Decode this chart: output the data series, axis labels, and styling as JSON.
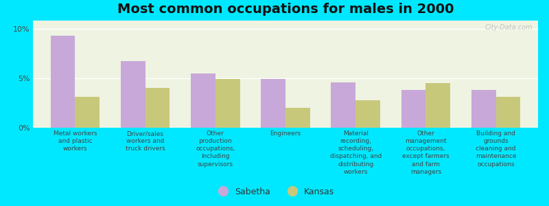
{
  "title": "Most common occupations for males in 2000",
  "categories": [
    "Metal workers\nand plastic\nworkers",
    "Driver/sales\nworkers and\ntruck drivers",
    "Other\nproduction\noccupations,\nincluding\nsupervisors",
    "Engineers",
    "Material\nrecording,\nscheduling,\ndispatching, and\ndistributing\nworkers",
    "Other\nmanagement\noccupations,\nexcept farmers\nand farm\nmanagers",
    "Building and\ngrounds\ncleaning and\nmaintenance\noccupations"
  ],
  "sabetha_values": [
    9.3,
    6.7,
    5.5,
    4.9,
    4.6,
    3.8,
    3.8
  ],
  "kansas_values": [
    3.1,
    4.0,
    4.9,
    2.0,
    2.8,
    4.5,
    3.1
  ],
  "sabetha_color": "#c8a8d8",
  "kansas_color": "#c8c87a",
  "background_color": "#00e8ff",
  "plot_bg_color": "#eef3e2",
  "yticks": [
    0,
    5,
    10
  ],
  "yticklabels": [
    "0%",
    "5%",
    "10%"
  ],
  "ylim": [
    0,
    10.8
  ],
  "bar_width": 0.35,
  "title_fontsize": 14,
  "label_fontsize": 6.5,
  "tick_fontsize": 8,
  "legend_fontsize": 9,
  "watermark": "City-Data.com"
}
